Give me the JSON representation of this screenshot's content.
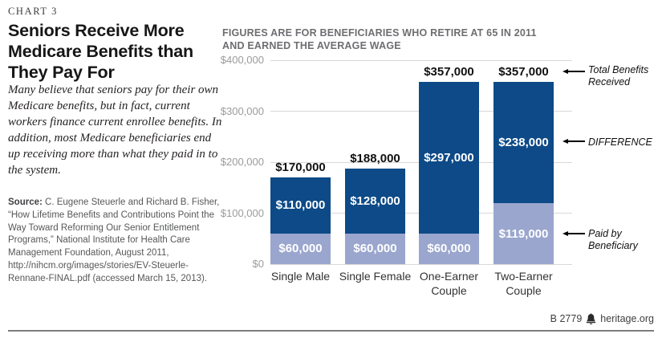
{
  "chart_label": "CHART 3",
  "title": "Seniors Receive More Medicare Benefits than They Pay For",
  "description": "Many believe that seniors pay for their own Medicare benefits, but in fact, current workers finance current enrollee benefits. In addition, most Medicare beneficiaries end up receiving more than what they paid in to the system.",
  "source": {
    "label": "Source:",
    "text": "C. Eugene Steuerle and Richard B. Fisher, “How Lifetime Benefits and Contributions Point the Way Toward Reforming Our Senior Entitlement Programs,” National Institute for Health Care Management Foundation, August 2011, http://nihcm.org/images/stories/EV-Steuerle-Rennane-FINAL.pdf (accessed March 15, 2013)."
  },
  "footer": {
    "doc_id": "B 2779",
    "site": "heritage.org",
    "logo_icon": "heritage-bell-icon"
  },
  "chart_data": {
    "type": "bar",
    "stacked": true,
    "subtitle": "FIGURES ARE FOR BENEFICIARIES WHO RETIRE AT 65 IN 2011 AND EARNED THE AVERAGE WAGE",
    "subtitle_lines": [
      "FIGURES ARE FOR BENEFICIARIES WHO RETIRE AT 65 IN 2011",
      "AND EARNED THE AVERAGE WAGE"
    ],
    "categories": [
      "Single Male",
      "Single Female",
      "One-Earner Couple",
      "Two-Earner Couple"
    ],
    "series": [
      {
        "name": "Paid by Beneficiary",
        "color": "#9aa6ce",
        "values": [
          60000,
          60000,
          60000,
          119000
        ],
        "labels": [
          "$60,000",
          "$60,000",
          "$60,000",
          "$119,000"
        ]
      },
      {
        "name": "Difference",
        "color": "#0d4a87",
        "values": [
          110000,
          128000,
          297000,
          238000
        ],
        "labels": [
          "$110,000",
          "$128,000",
          "$297,000",
          "$238,000"
        ]
      }
    ],
    "totals": [
      170000,
      188000,
      357000,
      357000
    ],
    "total_labels": [
      "$170,000",
      "$188,000",
      "$357,000",
      "$357,000"
    ],
    "y_ticks": [
      "$400,000",
      "$300,000",
      "$200,000",
      "$100,000",
      "$0"
    ],
    "ylim": [
      0,
      400000
    ],
    "grid": true,
    "annotations": [
      {
        "text": "Total Benefits Received",
        "target": "total-label"
      },
      {
        "text": "DIFFERENCE",
        "target": "difference-segment"
      },
      {
        "text": "Paid by Beneficiary",
        "target": "paid-segment"
      }
    ]
  }
}
